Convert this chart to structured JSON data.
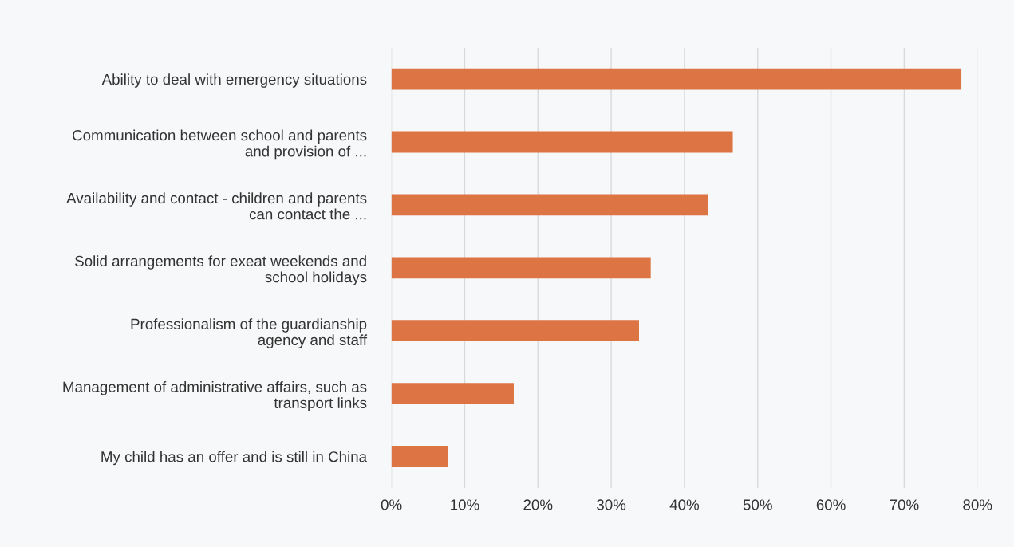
{
  "chart_data": {
    "type": "bar",
    "orientation": "horizontal",
    "categories": [
      "Ability to deal with emergency situations",
      "Communication between school and parents\nand provision of ...",
      "Availability and contact - children and parents\ncan contact the ...",
      "Solid arrangements for exeat weekends and\nschool holidays",
      "Professionalism of the guardianship\nagency and staff",
      "Management of administrative affairs, such as\ntransport links",
      "My child has an offer and is still in China"
    ],
    "values": [
      77.8,
      46.6,
      43.2,
      35.4,
      33.8,
      16.7,
      7.7
    ],
    "color": "#dd7443",
    "xlim": [
      0,
      80
    ],
    "xticks": [
      {
        "value": 0,
        "label": "0%"
      },
      {
        "value": 10,
        "label": "10%"
      },
      {
        "value": 20,
        "label": "20%"
      },
      {
        "value": 30,
        "label": "30%"
      },
      {
        "value": 40,
        "label": "40%"
      },
      {
        "value": 50,
        "label": "50%"
      },
      {
        "value": 60,
        "label": "60%"
      },
      {
        "value": 70,
        "label": "70%"
      },
      {
        "value": 80,
        "label": "80%"
      }
    ],
    "grid": "x"
  }
}
